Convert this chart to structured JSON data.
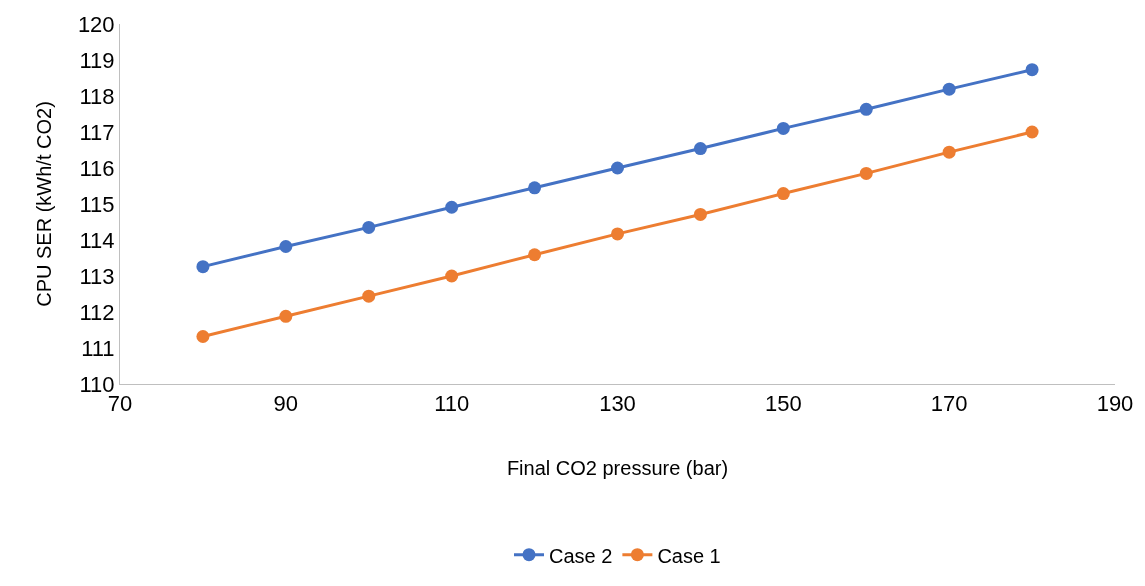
{
  "chart_data": {
    "type": "line",
    "xlabel": "Final CO2 pressure (bar)",
    "ylabel": "CPU SER (kWh/t CO2)",
    "x": [
      80,
      90,
      100,
      110,
      120,
      130,
      140,
      150,
      160,
      170,
      180
    ],
    "series": [
      {
        "name": "Case 2",
        "color": "#4472c4",
        "values": [
          113.26,
          113.82,
          114.35,
          114.91,
          115.45,
          116.0,
          116.54,
          117.1,
          117.63,
          118.19,
          118.73
        ]
      },
      {
        "name": "Case 1",
        "color": "#ed7d31",
        "values": [
          111.32,
          111.88,
          112.44,
          113.0,
          113.59,
          114.17,
          114.71,
          115.29,
          115.85,
          116.44,
          117.0
        ]
      }
    ],
    "xlim": [
      70,
      190
    ],
    "xticks": [
      70,
      90,
      110,
      130,
      150,
      170,
      190
    ],
    "ylim": [
      110,
      120
    ],
    "yticks": [
      110,
      111,
      112,
      113,
      114,
      115,
      116,
      117,
      118,
      119,
      120
    ],
    "grid": false,
    "legend": "bottom",
    "marker": "circle",
    "line_style": "solid"
  }
}
